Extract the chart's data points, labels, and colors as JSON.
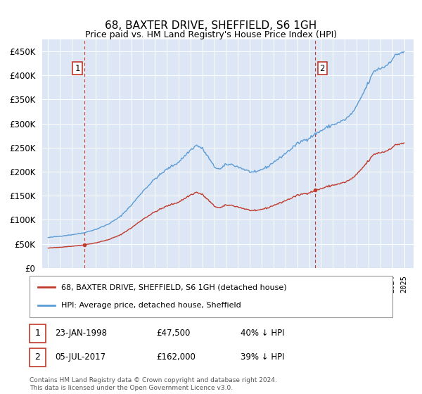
{
  "title": "68, BAXTER DRIVE, SHEFFIELD, S6 1GH",
  "subtitle": "Price paid vs. HM Land Registry's House Price Index (HPI)",
  "yticks": [
    0,
    50000,
    100000,
    150000,
    200000,
    250000,
    300000,
    350000,
    400000,
    450000
  ],
  "xlim_start": 1994.5,
  "xlim_end": 2025.8,
  "ylim": [
    0,
    475000
  ],
  "background_color": "#dce6f5",
  "plot_bg_color": "#dce6f5",
  "hpi_color": "#5b9bd5",
  "sale_color": "#c0392b",
  "vline_color": "#c0392b",
  "annotation_box_color": "#c0392b",
  "sale1_date": 1998.07,
  "sale1_price": 47500,
  "sale1_label": "1",
  "sale2_date": 2017.51,
  "sale2_price": 162000,
  "sale2_label": "2",
  "legend_entry1": "68, BAXTER DRIVE, SHEFFIELD, S6 1GH (detached house)",
  "legend_entry2": "HPI: Average price, detached house, Sheffield",
  "info1_label": "1",
  "info1_date": "23-JAN-1998",
  "info1_price": "£47,500",
  "info1_hpi": "40% ↓ HPI",
  "info2_label": "2",
  "info2_date": "05-JUL-2017",
  "info2_price": "£162,000",
  "info2_hpi": "39% ↓ HPI",
  "footer": "Contains HM Land Registry data © Crown copyright and database right 2024.\nThis data is licensed under the Open Government Licence v3.0."
}
